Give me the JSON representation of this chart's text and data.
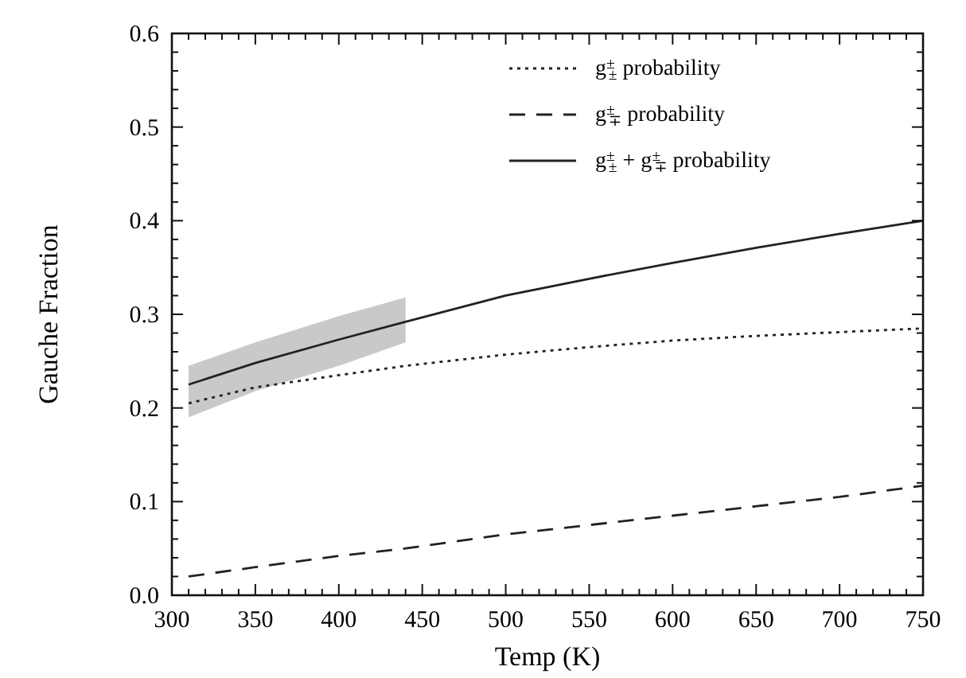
{
  "chart_data": {
    "type": "line",
    "xlabel": "Temp (K)",
    "ylabel": "Gauche Fraction",
    "legend": "top right",
    "grid": false,
    "x": [
      310,
      350,
      400,
      440,
      500,
      550,
      600,
      650,
      700,
      750
    ],
    "series": [
      {
        "name": "g$^{±}$$_{±}$ probability",
        "color": "#222222",
        "line_style": "dotted",
        "values": [
          0.205,
          0.222,
          0.235,
          0.245,
          0.257,
          0.265,
          0.272,
          0.277,
          0.281,
          0.285
        ]
      },
      {
        "name": "g$^{±}$$_{∓}$ probability",
        "color": "#222222",
        "line_style": "dashed",
        "values": [
          0.02,
          0.03,
          0.042,
          0.05,
          0.065,
          0.075,
          0.085,
          0.095,
          0.105,
          0.117
        ]
      },
      {
        "name": "g$^{±}$$_{±}$ + g$^{±}$$_{∓}$ probability",
        "color": "#222222",
        "line_style": "solid",
        "values": [
          0.225,
          0.248,
          0.273,
          0.292,
          0.32,
          0.338,
          0.355,
          0.371,
          0.386,
          0.4
        ],
        "lower": [
          0.19,
          0.218,
          0.245,
          0.27,
          null,
          null,
          null,
          null,
          null,
          null
        ],
        "upper": [
          0.245,
          0.27,
          0.298,
          0.318,
          null,
          null,
          null,
          null,
          null,
          null
        ]
      }
    ],
    "xlim": [
      300,
      750
    ],
    "ylim": [
      0,
      0.6
    ],
    "xticks": [
      300,
      {
        "value": 310,
        "label": null
      },
      {
        "value": 320,
        "label": null
      },
      {
        "value": 330,
        "label": null
      },
      {
        "value": 340,
        "label": null
      },
      350,
      {
        "value": 360,
        "label": null
      },
      {
        "value": 370,
        "label": null
      },
      {
        "value": 380,
        "label": null
      },
      {
        "value": 390,
        "label": null
      },
      400,
      {
        "value": 410,
        "label": null
      },
      {
        "value": 420,
        "label": null
      },
      {
        "value": 430,
        "label": null
      },
      {
        "value": 440,
        "label": null
      },
      450,
      {
        "value": 460,
        "label": null
      },
      {
        "value": 470,
        "label": null
      },
      {
        "value": 480,
        "label": null
      },
      {
        "value": 490,
        "label": null
      },
      500,
      {
        "value": 510,
        "label": null
      },
      {
        "value": 520,
        "label": null
      },
      {
        "value": 530,
        "label": null
      },
      {
        "value": 540,
        "label": null
      },
      550,
      {
        "value": 560,
        "label": null
      },
      {
        "value": 570,
        "label": null
      },
      {
        "value": 580,
        "label": null
      },
      {
        "value": 590,
        "label": null
      },
      600,
      {
        "value": 610,
        "label": null
      },
      {
        "value": 620,
        "label": null
      },
      {
        "value": 630,
        "label": null
      },
      {
        "value": 640,
        "label": null
      },
      650,
      {
        "value": 660,
        "label": null
      },
      {
        "value": 670,
        "label": null
      },
      {
        "value": 680,
        "label": null
      },
      {
        "value": 690,
        "label": null
      },
      700,
      {
        "value": 710,
        "label": null
      },
      {
        "value": 720,
        "label": null
      },
      {
        "value": 730,
        "label": null
      },
      {
        "value": 740,
        "label": null
      },
      750
    ],
    "yticks": [
      {
        "value": 0,
        "label": "0.0"
      },
      {
        "value": 0.02,
        "label": null
      },
      {
        "value": 0.04,
        "label": null
      },
      {
        "value": 0.06,
        "label": null
      },
      {
        "value": 0.08,
        "label": null
      },
      0.1,
      {
        "value": 0.12,
        "label": null
      },
      {
        "value": 0.14,
        "label": null
      },
      {
        "value": 0.16,
        "label": null
      },
      {
        "value": 0.18,
        "label": null
      },
      0.2,
      {
        "value": 0.22,
        "label": null
      },
      {
        "value": 0.24,
        "label": null
      },
      {
        "value": 0.26,
        "label": null
      },
      {
        "value": 0.28,
        "label": null
      },
      0.3,
      {
        "value": 0.32,
        "label": null
      },
      {
        "value": 0.34,
        "label": null
      },
      {
        "value": 0.36,
        "label": null
      },
      {
        "value": 0.38,
        "label": null
      },
      0.4,
      {
        "value": 0.42,
        "label": null
      },
      {
        "value": 0.44,
        "label": null
      },
      {
        "value": 0.46,
        "label": null
      },
      {
        "value": 0.48,
        "label": null
      },
      0.5,
      {
        "value": 0.52,
        "label": null
      },
      {
        "value": 0.54,
        "label": null
      },
      {
        "value": 0.56,
        "label": null
      },
      {
        "value": 0.58,
        "label": null
      },
      0.6
    ]
  }
}
